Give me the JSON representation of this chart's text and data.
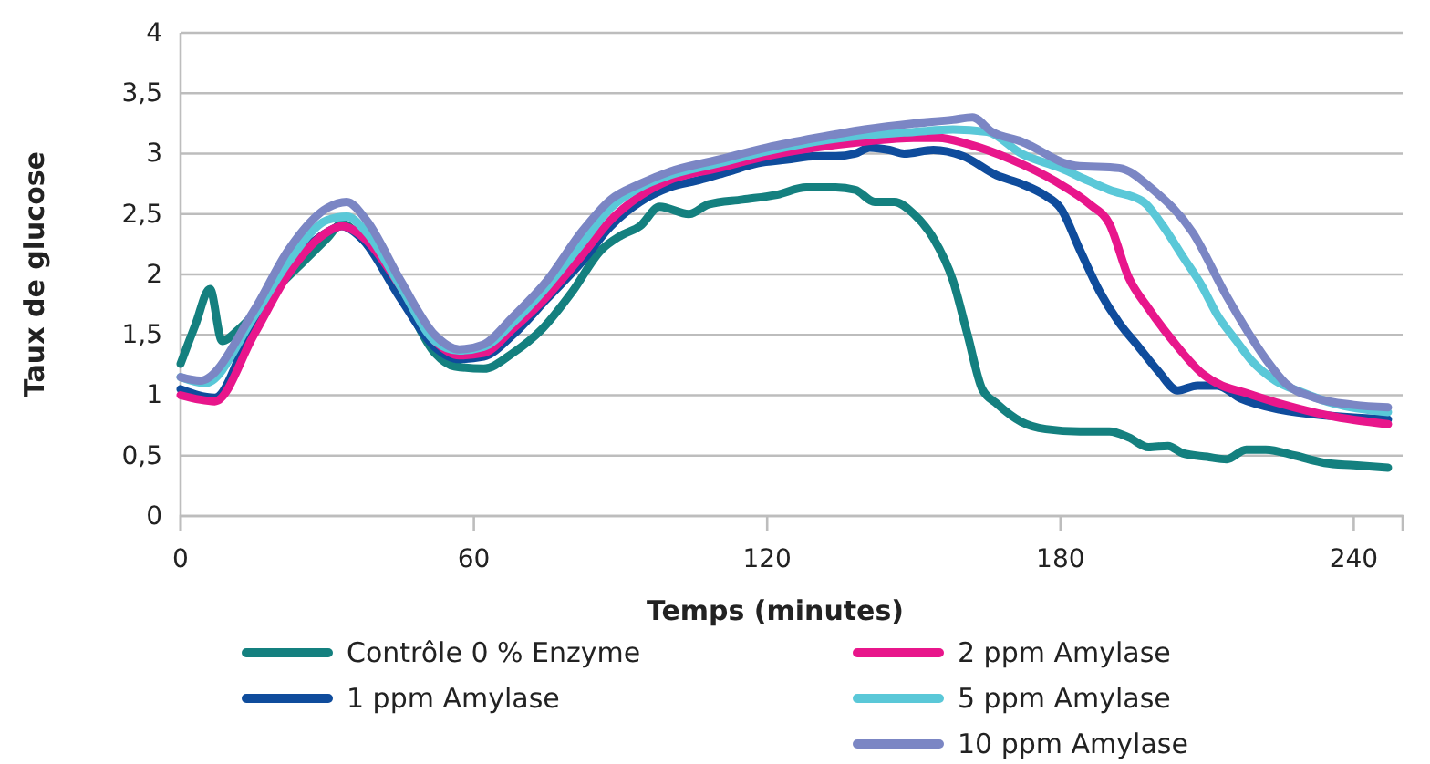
{
  "chart_data": {
    "type": "line",
    "xlabel": "Temps (minutes)",
    "ylabel": "Taux de glucose",
    "xlim": [
      0,
      250
    ],
    "xticks": [
      0,
      60,
      120,
      180,
      240
    ],
    "ylim": [
      0,
      4
    ],
    "yticks": [
      0,
      {
        "value": 0.5,
        "label": "0,5"
      },
      1,
      {
        "value": 1.5,
        "label": "1,5"
      },
      2,
      {
        "value": 2.5,
        "label": "2,5"
      },
      3,
      {
        "value": 3.5,
        "label": "3,5"
      },
      4
    ],
    "grid": "y",
    "legend": "bottom",
    "line_style": "solid",
    "marker": "none",
    "series": [
      {
        "name": "Contrôle 0 % Enzyme",
        "color": "#14807f",
        "x": [
          0,
          3,
          6,
          8.5,
          12,
          15,
          20,
          25,
          30,
          33,
          37,
          45,
          52,
          56,
          62,
          68,
          74,
          80,
          86,
          90,
          94,
          98,
          104,
          108,
          115,
          122,
          128,
          134,
          138,
          142,
          146,
          150,
          154,
          158,
          161,
          164,
          167,
          172,
          177,
          184,
          190,
          194,
          198,
          202,
          205,
          210,
          214,
          218,
          222,
          228,
          234,
          240,
          247
        ],
        "values": [
          1.26,
          1.58,
          1.88,
          1.45,
          1.55,
          1.67,
          1.9,
          2.1,
          2.3,
          2.42,
          2.3,
          1.85,
          1.35,
          1.24,
          1.22,
          1.35,
          1.55,
          1.85,
          2.2,
          2.32,
          2.4,
          2.56,
          2.5,
          2.58,
          2.62,
          2.66,
          2.72,
          2.72,
          2.7,
          2.6,
          2.6,
          2.5,
          2.3,
          1.95,
          1.5,
          1.05,
          0.93,
          0.78,
          0.72,
          0.7,
          0.7,
          0.65,
          0.57,
          0.58,
          0.52,
          0.49,
          0.47,
          0.55,
          0.55,
          0.5,
          0.44,
          0.42,
          0.4
        ]
      },
      {
        "name": "1 ppm Amylase",
        "color": "#0f4c9c",
        "x": [
          0,
          7,
          15,
          22,
          30,
          33,
          37,
          45,
          52,
          57,
          62,
          68,
          75,
          82,
          88,
          94,
          100,
          106,
          112,
          118,
          124,
          130,
          134,
          138,
          141,
          145,
          148,
          154,
          160,
          167,
          172,
          177,
          180,
          184,
          188,
          192,
          196,
          200,
          204,
          208,
          212,
          217,
          225,
          235,
          247
        ],
        "values": [
          1.05,
          0.98,
          1.6,
          2.05,
          2.35,
          2.4,
          2.3,
          1.8,
          1.4,
          1.3,
          1.32,
          1.5,
          1.8,
          2.1,
          2.4,
          2.6,
          2.72,
          2.78,
          2.85,
          2.92,
          2.95,
          2.98,
          2.98,
          3.0,
          3.05,
          3.03,
          3.0,
          3.03,
          2.98,
          2.82,
          2.75,
          2.65,
          2.55,
          2.2,
          1.86,
          1.6,
          1.4,
          1.2,
          1.04,
          1.08,
          1.08,
          0.97,
          0.88,
          0.83,
          0.8
        ]
      },
      {
        "name": "2 ppm Amylase",
        "color": "#e8168b",
        "x": [
          0,
          7,
          15,
          22,
          30,
          33,
          37,
          45,
          52,
          57,
          62,
          68,
          75,
          82,
          88,
          94,
          100,
          110,
          120,
          130,
          140,
          150,
          155,
          161,
          170,
          179,
          186,
          190,
          194,
          198,
          203,
          209,
          213,
          217,
          225,
          235,
          247
        ],
        "values": [
          1.0,
          0.95,
          1.5,
          2.0,
          2.35,
          2.4,
          2.32,
          1.9,
          1.45,
          1.33,
          1.35,
          1.55,
          1.82,
          2.15,
          2.45,
          2.65,
          2.78,
          2.88,
          2.98,
          3.05,
          3.1,
          3.13,
          3.13,
          3.08,
          2.95,
          2.77,
          2.58,
          2.42,
          1.97,
          1.72,
          1.45,
          1.18,
          1.08,
          1.03,
          0.93,
          0.83,
          0.76
        ]
      },
      {
        "name": "5 ppm Amylase",
        "color": "#5ac8d8",
        "x": [
          0,
          5,
          15,
          22,
          30,
          34,
          38,
          45,
          52,
          57,
          62,
          68,
          75,
          82,
          88,
          94,
          100,
          110,
          120,
          130,
          140,
          150,
          158,
          165,
          172,
          180,
          186,
          190,
          197,
          201,
          205,
          209,
          212,
          216,
          219,
          224,
          229,
          236,
          247
        ],
        "values": [
          1.15,
          1.1,
          1.65,
          2.1,
          2.45,
          2.48,
          2.35,
          1.9,
          1.45,
          1.37,
          1.4,
          1.6,
          1.9,
          2.25,
          2.55,
          2.72,
          2.82,
          2.92,
          3.02,
          3.1,
          3.15,
          3.18,
          3.2,
          3.18,
          3.0,
          2.88,
          2.77,
          2.7,
          2.6,
          2.4,
          2.15,
          1.9,
          1.67,
          1.45,
          1.29,
          1.12,
          1.03,
          0.93,
          0.86
        ]
      },
      {
        "name": "10 ppm Amylase",
        "color": "#7b86c4",
        "x": [
          0,
          4,
          15,
          22,
          30,
          34,
          38,
          45,
          52,
          57,
          62,
          68,
          75,
          82,
          88,
          94,
          100,
          110,
          120,
          130,
          140,
          150,
          158,
          162,
          166,
          172,
          183,
          192,
          199,
          207,
          214,
          222,
          226,
          232,
          240,
          247
        ],
        "values": [
          1.15,
          1.12,
          1.7,
          2.2,
          2.55,
          2.6,
          2.45,
          1.95,
          1.5,
          1.38,
          1.42,
          1.65,
          1.95,
          2.35,
          2.62,
          2.75,
          2.85,
          2.95,
          3.05,
          3.13,
          3.2,
          3.25,
          3.28,
          3.3,
          3.18,
          3.1,
          2.9,
          2.88,
          2.7,
          2.35,
          1.82,
          1.3,
          1.1,
          0.98,
          0.92,
          0.9
        ]
      }
    ]
  }
}
